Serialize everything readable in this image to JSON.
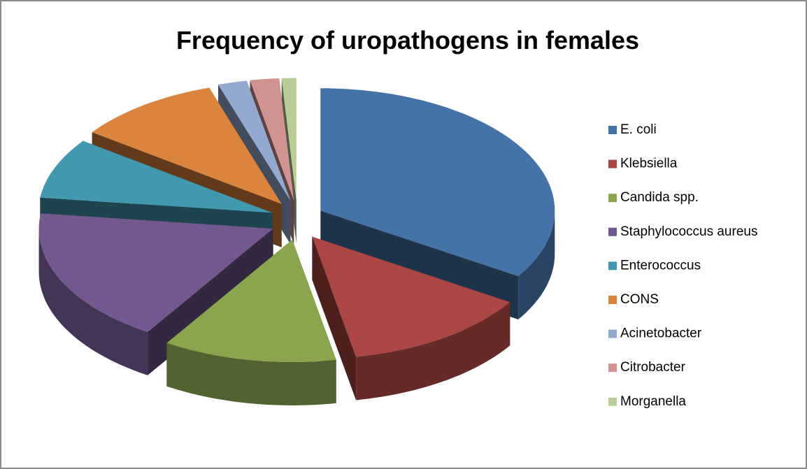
{
  "chart_data": {
    "type": "pie",
    "title": "Frequency of uropathogens in females",
    "categories": [
      "E. coli",
      "Klebsiella",
      "Candida spp.",
      "Staphylococcus aureus",
      "Enterococcus",
      "CONS",
      "Acinetobacter",
      "Citrobacter",
      "Morganella"
    ],
    "values": [
      34,
      13,
      12,
      18,
      8,
      10,
      2,
      2,
      1
    ],
    "colors": [
      "#4572a7",
      "#aa4643",
      "#89a54e",
      "#71588f",
      "#4198af",
      "#db843d",
      "#93a9cf",
      "#d19392",
      "#b9cd96"
    ],
    "legend": "right"
  }
}
